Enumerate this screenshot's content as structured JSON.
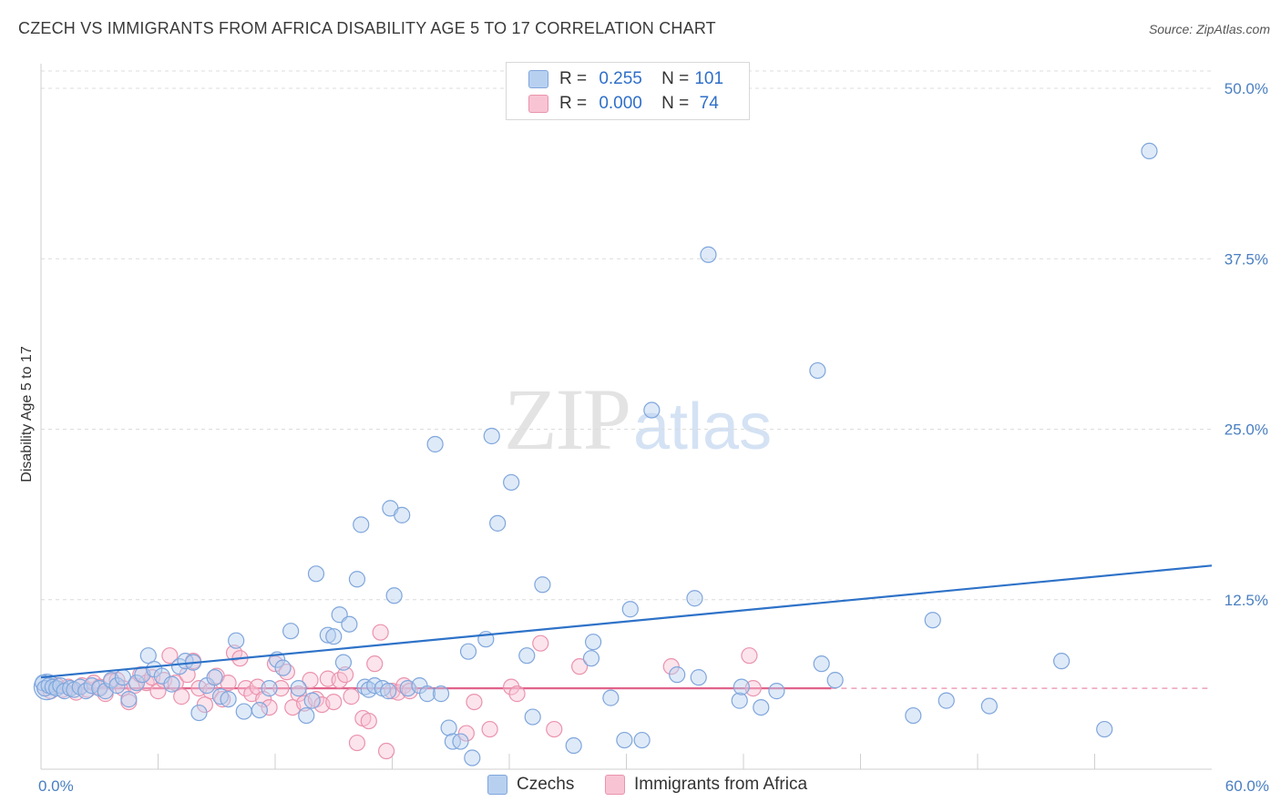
{
  "title": "CZECH VS IMMIGRANTS FROM AFRICA DISABILITY AGE 5 TO 17 CORRELATION CHART",
  "source": "Source: ZipAtlas.com",
  "watermark": {
    "zip": "ZIP",
    "atlas": "atlas"
  },
  "legend": {
    "czechs": {
      "r_label": "R =",
      "r_value": "0.255",
      "n_label": "N =",
      "n_value": "101"
    },
    "africa": {
      "r_label": "R =",
      "r_value": "0.000",
      "n_label": "N =",
      "n_value": "74"
    }
  },
  "colors": {
    "czechs_fill": "#b8d0f0",
    "czechs_stroke": "#7fa6dc",
    "czechs_line": "#2e72c8",
    "africa_fill": "#f8c4d4",
    "africa_stroke": "#ea93ad",
    "africa_line": "#e0628a",
    "tick_text": "#4a7fc1"
  },
  "chart_data": {
    "type": "scatter",
    "title": "CZECH VS IMMIGRANTS FROM AFRICA DISABILITY AGE 5 TO 17 CORRELATION CHART",
    "xlabel": "",
    "ylabel": "Disability Age 5 to 17",
    "xlim": [
      0,
      60
    ],
    "ylim": [
      0,
      52
    ],
    "x_tick_labels": [
      {
        "value": 0,
        "label": "0.0%"
      },
      {
        "value": 60,
        "label": "60.0%"
      }
    ],
    "y_tick_labels": [
      {
        "value": 12.5,
        "label": "12.5%"
      },
      {
        "value": 25,
        "label": "25.0%"
      },
      {
        "value": 37.5,
        "label": "37.5%"
      },
      {
        "value": 50,
        "label": "50.0%"
      }
    ],
    "x_minor_ticks": [
      6,
      12,
      18,
      24,
      30,
      36,
      42,
      48,
      54
    ],
    "legend_position": "top-center",
    "series": [
      {
        "name": "Czechs",
        "R": 0.255,
        "N": 101,
        "trendline": {
          "x": [
            0,
            60
          ],
          "y": [
            6.8,
            15.0
          ],
          "dashed_after": null
        },
        "points": [
          [
            0.1,
            6.4
          ],
          [
            0.2,
            6.0
          ],
          [
            0.4,
            6.2
          ],
          [
            0.6,
            6.1
          ],
          [
            0.8,
            6.0
          ],
          [
            1.0,
            6.2
          ],
          [
            1.2,
            5.8
          ],
          [
            1.5,
            6.0
          ],
          [
            1.7,
            5.9
          ],
          [
            2.0,
            6.1
          ],
          [
            2.3,
            5.8
          ],
          [
            2.6,
            6.2
          ],
          [
            3.0,
            6.0
          ],
          [
            3.3,
            5.8
          ],
          [
            3.6,
            6.6
          ],
          [
            3.9,
            6.2
          ],
          [
            4.2,
            6.8
          ],
          [
            4.5,
            5.2
          ],
          [
            4.9,
            6.4
          ],
          [
            5.2,
            7.0
          ],
          [
            5.5,
            8.4
          ],
          [
            5.8,
            7.4
          ],
          [
            6.2,
            6.9
          ],
          [
            6.7,
            6.3
          ],
          [
            7.1,
            7.6
          ],
          [
            7.4,
            8.0
          ],
          [
            7.8,
            7.9
          ],
          [
            8.1,
            4.2
          ],
          [
            8.5,
            6.2
          ],
          [
            8.9,
            6.8
          ],
          [
            9.2,
            5.4
          ],
          [
            9.6,
            5.2
          ],
          [
            10.0,
            9.5
          ],
          [
            10.4,
            4.3
          ],
          [
            11.2,
            4.4
          ],
          [
            11.7,
            6.0
          ],
          [
            12.1,
            8.1
          ],
          [
            12.4,
            7.5
          ],
          [
            12.8,
            10.2
          ],
          [
            13.2,
            6.0
          ],
          [
            13.6,
            4.0
          ],
          [
            13.9,
            5.1
          ],
          [
            14.1,
            14.4
          ],
          [
            14.7,
            9.9
          ],
          [
            15.0,
            9.8
          ],
          [
            15.3,
            11.4
          ],
          [
            15.5,
            7.9
          ],
          [
            15.8,
            10.7
          ],
          [
            16.2,
            14.0
          ],
          [
            16.4,
            18.0
          ],
          [
            16.6,
            6.1
          ],
          [
            16.8,
            5.9
          ],
          [
            17.1,
            6.2
          ],
          [
            17.5,
            6.0
          ],
          [
            17.8,
            5.8
          ],
          [
            17.9,
            19.2
          ],
          [
            18.1,
            12.8
          ],
          [
            18.5,
            18.7
          ],
          [
            18.8,
            6.0
          ],
          [
            19.4,
            6.2
          ],
          [
            19.8,
            5.6
          ],
          [
            20.2,
            23.9
          ],
          [
            20.5,
            5.6
          ],
          [
            20.9,
            3.1
          ],
          [
            21.1,
            2.1
          ],
          [
            21.5,
            2.1
          ],
          [
            21.9,
            8.7
          ],
          [
            22.1,
            0.9
          ],
          [
            22.8,
            9.6
          ],
          [
            23.1,
            24.5
          ],
          [
            23.4,
            18.1
          ],
          [
            24.1,
            21.1
          ],
          [
            24.9,
            8.4
          ],
          [
            25.2,
            3.9
          ],
          [
            25.7,
            13.6
          ],
          [
            27.3,
            1.8
          ],
          [
            28.2,
            8.2
          ],
          [
            28.3,
            9.4
          ],
          [
            29.2,
            5.3
          ],
          [
            29.9,
            2.2
          ],
          [
            30.2,
            11.8
          ],
          [
            30.8,
            2.2
          ],
          [
            31.3,
            26.4
          ],
          [
            32.6,
            7.0
          ],
          [
            33.5,
            12.6
          ],
          [
            33.7,
            6.8
          ],
          [
            34.2,
            37.8
          ],
          [
            35.8,
            5.1
          ],
          [
            35.9,
            6.1
          ],
          [
            36.9,
            4.6
          ],
          [
            37.7,
            5.8
          ],
          [
            39.8,
            29.3
          ],
          [
            40.0,
            7.8
          ],
          [
            40.7,
            6.6
          ],
          [
            44.7,
            4.0
          ],
          [
            45.7,
            11.0
          ],
          [
            46.4,
            5.1
          ],
          [
            48.6,
            4.7
          ],
          [
            52.3,
            8.0
          ],
          [
            54.5,
            3.0
          ],
          [
            56.8,
            45.4
          ]
        ]
      },
      {
        "name": "Immigrants from Africa",
        "R": 0.0,
        "N": 74,
        "trendline": {
          "x": [
            0,
            40.5
          ],
          "y": [
            6.0,
            6.0
          ],
          "dashed_after": 40.5,
          "dashed_to": 60
        },
        "points": [
          [
            0.2,
            6.0
          ],
          [
            0.5,
            5.8
          ],
          [
            0.8,
            6.2
          ],
          [
            1.1,
            5.9
          ],
          [
            1.4,
            6.1
          ],
          [
            1.8,
            5.7
          ],
          [
            2.1,
            6.2
          ],
          [
            2.4,
            5.9
          ],
          [
            2.7,
            6.4
          ],
          [
            3.0,
            6.1
          ],
          [
            3.3,
            5.6
          ],
          [
            3.6,
            6.5
          ],
          [
            3.9,
            6.6
          ],
          [
            4.2,
            6.0
          ],
          [
            4.5,
            5.0
          ],
          [
            4.8,
            6.2
          ],
          [
            5.1,
            7.0
          ],
          [
            5.4,
            6.4
          ],
          [
            5.7,
            6.8
          ],
          [
            6.0,
            5.8
          ],
          [
            6.3,
            6.6
          ],
          [
            6.6,
            8.4
          ],
          [
            6.9,
            6.4
          ],
          [
            7.2,
            5.4
          ],
          [
            7.5,
            7.0
          ],
          [
            7.8,
            8.0
          ],
          [
            8.1,
            6.0
          ],
          [
            8.4,
            4.8
          ],
          [
            8.7,
            5.8
          ],
          [
            9.0,
            6.9
          ],
          [
            9.3,
            5.2
          ],
          [
            9.6,
            6.4
          ],
          [
            9.9,
            8.6
          ],
          [
            10.2,
            8.2
          ],
          [
            10.5,
            6.0
          ],
          [
            10.8,
            5.6
          ],
          [
            11.1,
            6.1
          ],
          [
            11.4,
            5.2
          ],
          [
            11.7,
            4.6
          ],
          [
            12.0,
            7.8
          ],
          [
            12.3,
            6.0
          ],
          [
            12.6,
            7.2
          ],
          [
            12.9,
            4.6
          ],
          [
            13.2,
            5.6
          ],
          [
            13.5,
            4.9
          ],
          [
            13.8,
            6.6
          ],
          [
            14.1,
            5.2
          ],
          [
            14.4,
            4.8
          ],
          [
            14.7,
            6.7
          ],
          [
            15.0,
            5.0
          ],
          [
            15.3,
            6.6
          ],
          [
            15.6,
            7.0
          ],
          [
            15.9,
            5.4
          ],
          [
            16.2,
            2.0
          ],
          [
            16.5,
            3.8
          ],
          [
            16.8,
            3.6
          ],
          [
            17.1,
            7.8
          ],
          [
            17.4,
            10.1
          ],
          [
            17.7,
            1.4
          ],
          [
            18.0,
            5.8
          ],
          [
            18.3,
            5.7
          ],
          [
            18.6,
            6.2
          ],
          [
            18.9,
            5.8
          ],
          [
            21.8,
            2.7
          ],
          [
            22.2,
            5.0
          ],
          [
            23.0,
            3.0
          ],
          [
            24.1,
            6.1
          ],
          [
            24.4,
            5.6
          ],
          [
            25.6,
            9.3
          ],
          [
            26.3,
            3.0
          ],
          [
            27.6,
            7.6
          ],
          [
            32.3,
            7.6
          ],
          [
            36.3,
            8.4
          ],
          [
            36.5,
            6.0
          ]
        ]
      }
    ]
  },
  "bottom_legend": {
    "czechs": "Czechs",
    "africa": "Immigrants from Africa"
  }
}
